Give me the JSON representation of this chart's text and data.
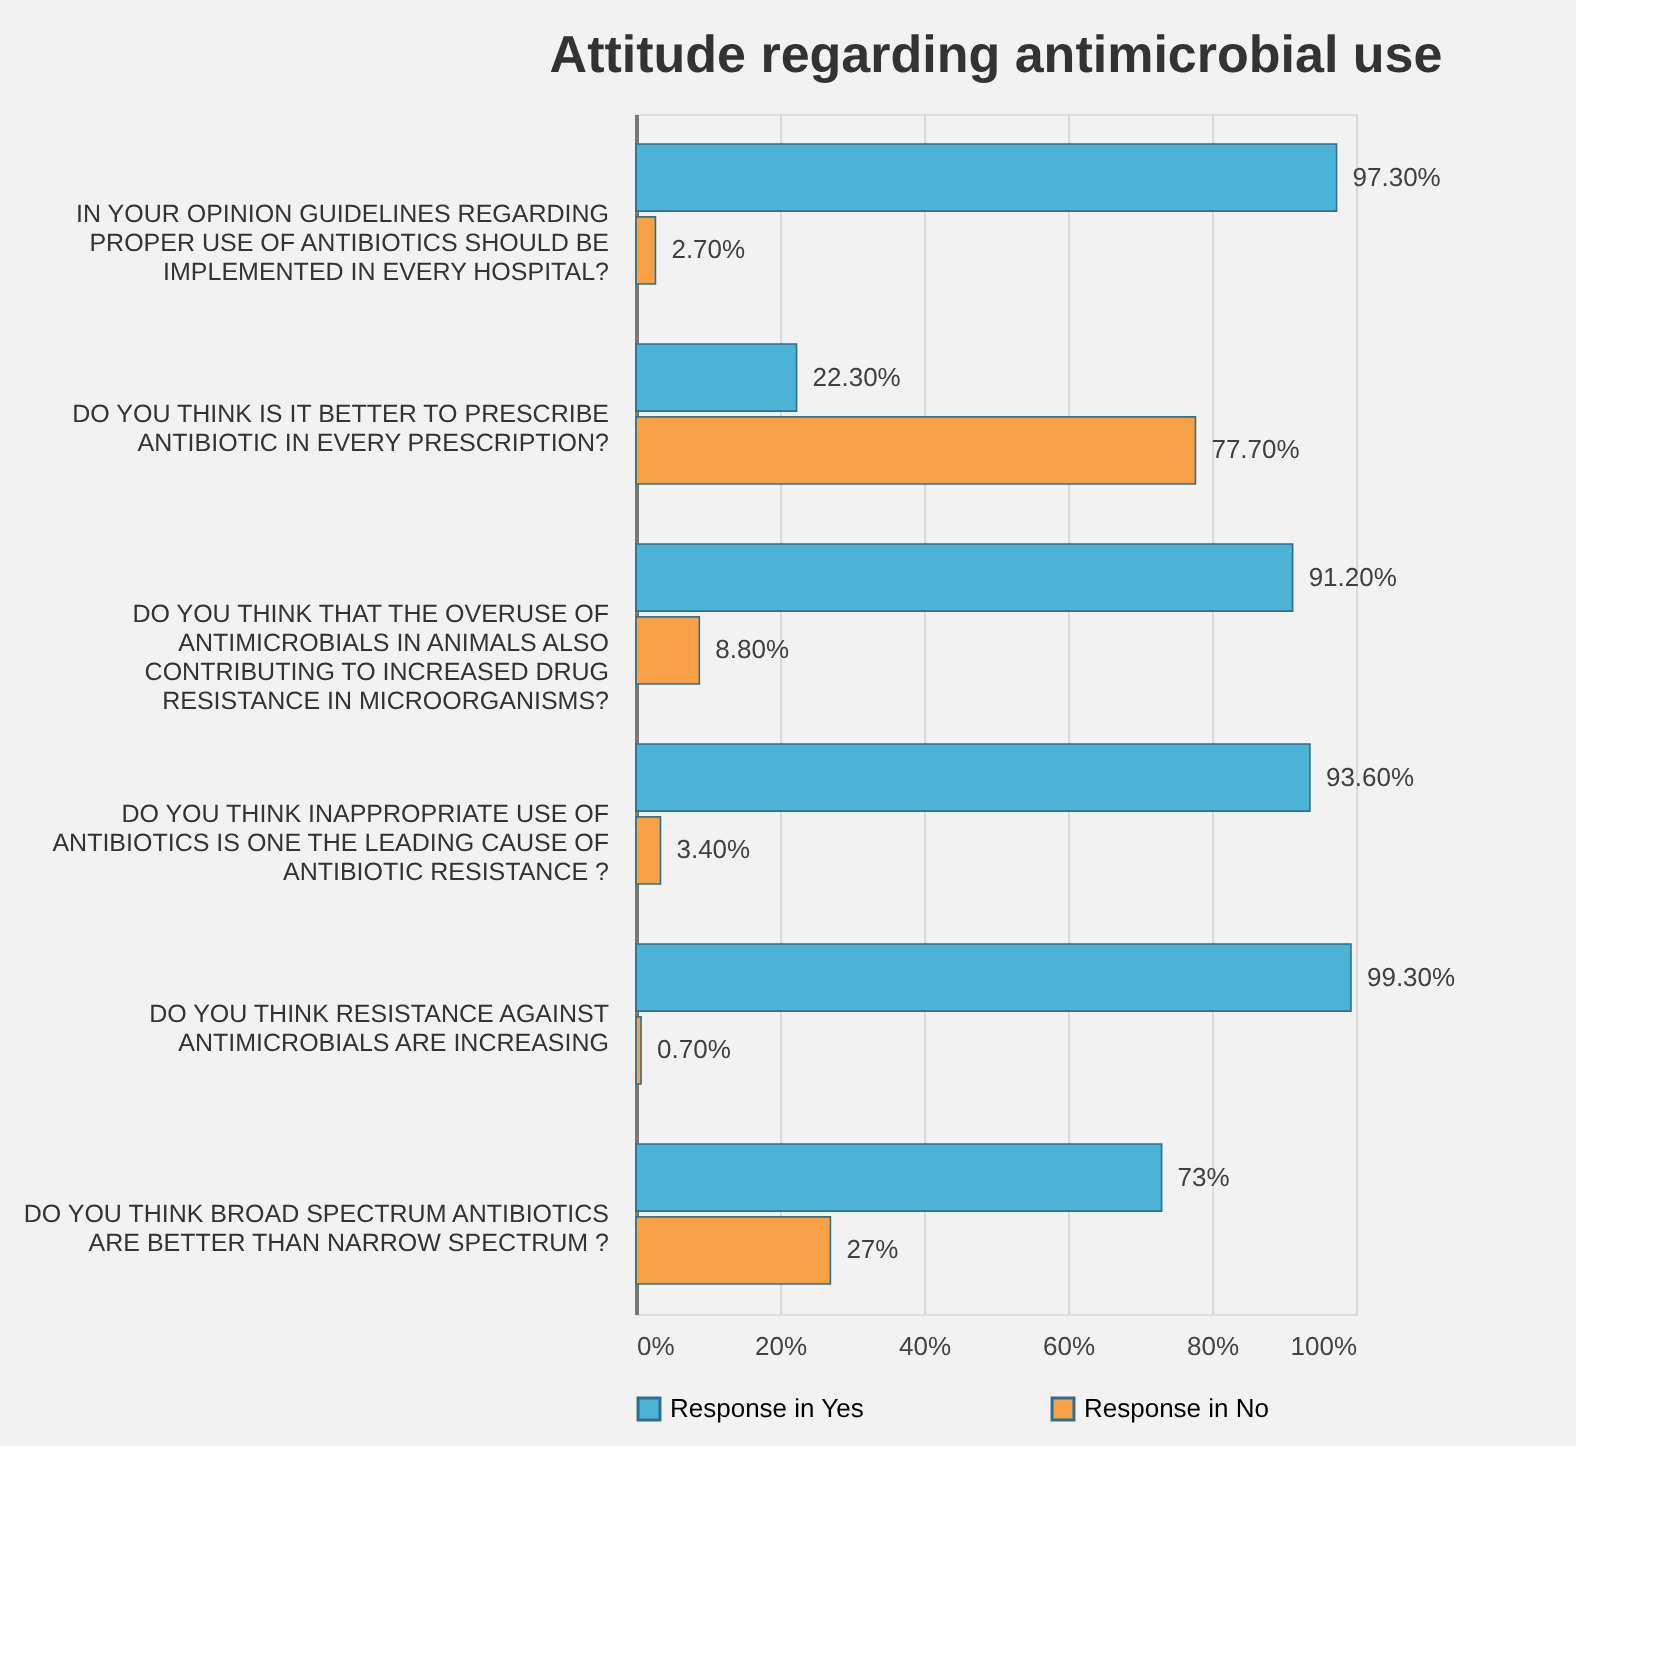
{
  "chart_data": {
    "type": "bar",
    "orientation": "horizontal",
    "title": "Attitude regarding antimicrobial use",
    "categories": [
      "IN YOUR OPINION GUIDELINES REGARDING PROPER USE OF ANTIBIOTICS SHOULD BE IMPLEMENTED IN EVERY HOSPITAL?",
      "DO YOU THINK IS IT BETTER TO PRESCRIBE ANTIBIOTIC IN EVERY PRESCRIPTION?",
      "DO YOU THINK THAT THE OVERUSE OF ANTIMICROBIALS IN ANIMALS ALSO CONTRIBUTING TO INCREASED DRUG RESISTANCE IN MICROORGANISMS?",
      "DO YOU THINK INAPPROPRIATE USE OF ANTIBIOTICS IS ONE THE LEADING CAUSE OF ANTIBIOTIC RESISTANCE ?",
      "DO YOU THINK RESISTANCE AGAINST ANTIMICROBIALS ARE INCREASING",
      "DO YOU THINK BROAD SPECTRUM ANTIBIOTICS ARE BETTER THAN NARROW SPECTRUM ?"
    ],
    "series": [
      {
        "name": "Response in Yes",
        "color": "#4bb3d6",
        "values": [
          97.3,
          22.3,
          91.2,
          93.6,
          99.3,
          73
        ],
        "value_labels": [
          "97.30%",
          "22.30%",
          "91.20%",
          "93.60%",
          "99.30%",
          "73%"
        ]
      },
      {
        "name": "Response in No",
        "color": "#f7a146",
        "values": [
          2.7,
          77.7,
          8.8,
          3.4,
          0.7,
          27
        ],
        "value_labels": [
          "2.70%",
          "77.70%",
          "8.80%",
          "3.40%",
          "0.70%",
          "27%"
        ]
      }
    ],
    "xlim": [
      0,
      100
    ],
    "xticks": [
      {
        "value": 0,
        "label": "0%"
      },
      {
        "value": 20,
        "label": "20%"
      },
      {
        "value": 40,
        "label": "40%"
      },
      {
        "value": 60,
        "label": "60%"
      },
      {
        "value": 80,
        "label": "80%"
      },
      {
        "value": 100,
        "label": "100%"
      }
    ],
    "grid": "x",
    "legend": "bottom"
  }
}
